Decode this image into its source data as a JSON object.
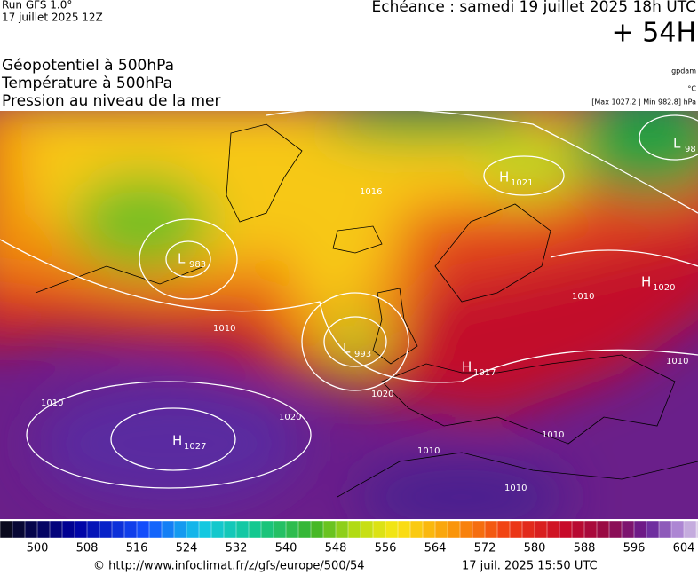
{
  "header": {
    "run": "Run GFS 1.0°",
    "run_date": "17 juillet 2025 12Z",
    "forecast": "Echéance : samedi 19 juillet 2025 18h UTC",
    "lead": "+ 54H",
    "fields": [
      "Géopotentiel à 500hPa",
      "Température à 500hPa",
      "Pression au niveau de la mer"
    ],
    "units": [
      "gpdam",
      "°C",
      "[Max 1027.2 | Min 982.8] hPa"
    ]
  },
  "centers": [
    {
      "kind": "L",
      "value": "983"
    },
    {
      "kind": "L",
      "value": "993"
    },
    {
      "kind": "H",
      "value": "1027"
    },
    {
      "kind": "H",
      "value": "1021"
    },
    {
      "kind": "L",
      "value": "98"
    },
    {
      "kind": "H",
      "value": "1020"
    },
    {
      "kind": "H",
      "value": "1017"
    }
  ],
  "isobar_labels": [
    "1016",
    "1010",
    "1010",
    "1020",
    "1020",
    "1010",
    "1010",
    "1010",
    "1010",
    "1010"
  ],
  "colorbar": {
    "ticks": [
      500,
      508,
      516,
      524,
      532,
      540,
      548,
      556,
      564,
      572,
      580,
      588,
      596,
      604
    ]
  },
  "footer": {
    "source": "© http://www.infoclimat.fr/z/gfs/europe/500/54",
    "generated": "17 juil. 2025 15:50 UTC"
  }
}
